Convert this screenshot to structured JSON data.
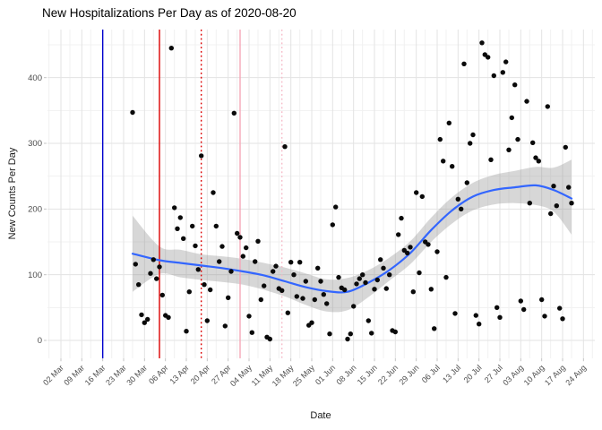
{
  "chart_data": {
    "type": "scatter",
    "title": "New Hospitalizations Per Day as of 2020-08-20",
    "xlabel": "Date",
    "ylabel": "New Counts Per Day",
    "x_tick_start_date": "2020-03-02",
    "x_tick_interval_days": 7,
    "x_tick_labels": [
      "02 Mar",
      "09 Mar",
      "16 Mar",
      "23 Mar",
      "30 Mar",
      "06 Apr",
      "13 Apr",
      "20 Apr",
      "27 Apr",
      "04 May",
      "11 May",
      "18 May",
      "25 May",
      "01 Jun",
      "08 Jun",
      "15 Jun",
      "22 Jun",
      "29 Jun",
      "06 Jul",
      "13 Jul",
      "20 Jul",
      "27 Jul",
      "03 Aug",
      "10 Aug",
      "17 Aug",
      "24 Aug"
    ],
    "y_ticks": [
      0,
      100,
      200,
      300,
      400
    ],
    "y_minor_ticks": [
      50,
      150,
      250,
      350,
      450
    ],
    "ylim": [
      -27,
      473
    ],
    "grid": true,
    "legend": "none",
    "points": [
      [
        "2020-03-26",
        347
      ],
      [
        "2020-03-27",
        116
      ],
      [
        "2020-03-28",
        85
      ],
      [
        "2020-03-29",
        39
      ],
      [
        "2020-03-30",
        27
      ],
      [
        "2020-03-31",
        32
      ],
      [
        "2020-04-01",
        102
      ],
      [
        "2020-04-02",
        123
      ],
      [
        "2020-04-03",
        94
      ],
      [
        "2020-04-04",
        112
      ],
      [
        "2020-04-05",
        69
      ],
      [
        "2020-04-06",
        38
      ],
      [
        "2020-04-07",
        35
      ],
      [
        "2020-04-08",
        445
      ],
      [
        "2020-04-09",
        202
      ],
      [
        "2020-04-10",
        170
      ],
      [
        "2020-04-11",
        187
      ],
      [
        "2020-04-12",
        155
      ],
      [
        "2020-04-13",
        14
      ],
      [
        "2020-04-14",
        74
      ],
      [
        "2020-04-15",
        174
      ],
      [
        "2020-04-16",
        144
      ],
      [
        "2020-04-17",
        108
      ],
      [
        "2020-04-18",
        281
      ],
      [
        "2020-04-19",
        85
      ],
      [
        "2020-04-20",
        30
      ],
      [
        "2020-04-21",
        77
      ],
      [
        "2020-04-22",
        225
      ],
      [
        "2020-04-23",
        174
      ],
      [
        "2020-04-24",
        120
      ],
      [
        "2020-04-25",
        143
      ],
      [
        "2020-04-26",
        22
      ],
      [
        "2020-04-27",
        65
      ],
      [
        "2020-04-28",
        105
      ],
      [
        "2020-04-29",
        346
      ],
      [
        "2020-04-30",
        163
      ],
      [
        "2020-05-01",
        157
      ],
      [
        "2020-05-02",
        128
      ],
      [
        "2020-05-03",
        141
      ],
      [
        "2020-05-04",
        37
      ],
      [
        "2020-05-05",
        12
      ],
      [
        "2020-05-06",
        120
      ],
      [
        "2020-05-07",
        151
      ],
      [
        "2020-05-08",
        62
      ],
      [
        "2020-05-09",
        83
      ],
      [
        "2020-05-10",
        5
      ],
      [
        "2020-05-11",
        2
      ],
      [
        "2020-05-12",
        105
      ],
      [
        "2020-05-13",
        113
      ],
      [
        "2020-05-14",
        79
      ],
      [
        "2020-05-15",
        76
      ],
      [
        "2020-05-16",
        295
      ],
      [
        "2020-05-17",
        42
      ],
      [
        "2020-05-18",
        119
      ],
      [
        "2020-05-19",
        100
      ],
      [
        "2020-05-20",
        67
      ],
      [
        "2020-05-21",
        119
      ],
      [
        "2020-05-22",
        64
      ],
      [
        "2020-05-23",
        90
      ],
      [
        "2020-05-24",
        23
      ],
      [
        "2020-05-25",
        27
      ],
      [
        "2020-05-26",
        62
      ],
      [
        "2020-05-27",
        110
      ],
      [
        "2020-05-28",
        90
      ],
      [
        "2020-05-29",
        70
      ],
      [
        "2020-05-30",
        56
      ],
      [
        "2020-05-31",
        10
      ],
      [
        "2020-06-01",
        176
      ],
      [
        "2020-06-02",
        203
      ],
      [
        "2020-06-03",
        96
      ],
      [
        "2020-06-04",
        80
      ],
      [
        "2020-06-05",
        77
      ],
      [
        "2020-06-06",
        2
      ],
      [
        "2020-06-07",
        10
      ],
      [
        "2020-06-08",
        52
      ],
      [
        "2020-06-09",
        86
      ],
      [
        "2020-06-10",
        94
      ],
      [
        "2020-06-11",
        100
      ],
      [
        "2020-06-12",
        88
      ],
      [
        "2020-06-13",
        30
      ],
      [
        "2020-06-14",
        11
      ],
      [
        "2020-06-15",
        78
      ],
      [
        "2020-06-16",
        92
      ],
      [
        "2020-06-17",
        123
      ],
      [
        "2020-06-18",
        110
      ],
      [
        "2020-06-19",
        79
      ],
      [
        "2020-06-20",
        100
      ],
      [
        "2020-06-21",
        15
      ],
      [
        "2020-06-22",
        13
      ],
      [
        "2020-06-23",
        161
      ],
      [
        "2020-06-24",
        186
      ],
      [
        "2020-06-25",
        137
      ],
      [
        "2020-06-26",
        133
      ],
      [
        "2020-06-27",
        142
      ],
      [
        "2020-06-28",
        74
      ],
      [
        "2020-06-29",
        225
      ],
      [
        "2020-06-30",
        103
      ],
      [
        "2020-07-01",
        219
      ],
      [
        "2020-07-02",
        150
      ],
      [
        "2020-07-03",
        146
      ],
      [
        "2020-07-04",
        78
      ],
      [
        "2020-07-05",
        18
      ],
      [
        "2020-07-06",
        135
      ],
      [
        "2020-07-07",
        306
      ],
      [
        "2020-07-08",
        273
      ],
      [
        "2020-07-09",
        96
      ],
      [
        "2020-07-10",
        331
      ],
      [
        "2020-07-11",
        265
      ],
      [
        "2020-07-12",
        41
      ],
      [
        "2020-07-13",
        215
      ],
      [
        "2020-07-14",
        200
      ],
      [
        "2020-07-15",
        421
      ],
      [
        "2020-07-16",
        240
      ],
      [
        "2020-07-17",
        300
      ],
      [
        "2020-07-18",
        313
      ],
      [
        "2020-07-19",
        38
      ],
      [
        "2020-07-20",
        25
      ],
      [
        "2020-07-21",
        453
      ],
      [
        "2020-07-22",
        435
      ],
      [
        "2020-07-23",
        431
      ],
      [
        "2020-07-24",
        275
      ],
      [
        "2020-07-25",
        403
      ],
      [
        "2020-07-26",
        50
      ],
      [
        "2020-07-27",
        35
      ],
      [
        "2020-07-28",
        408
      ],
      [
        "2020-07-29",
        424
      ],
      [
        "2020-07-30",
        290
      ],
      [
        "2020-07-31",
        339
      ],
      [
        "2020-08-01",
        389
      ],
      [
        "2020-08-02",
        306
      ],
      [
        "2020-08-03",
        60
      ],
      [
        "2020-08-04",
        47
      ],
      [
        "2020-08-05",
        364
      ],
      [
        "2020-08-06",
        209
      ],
      [
        "2020-08-07",
        301
      ],
      [
        "2020-08-08",
        278
      ],
      [
        "2020-08-09",
        273
      ],
      [
        "2020-08-10",
        62
      ],
      [
        "2020-08-11",
        37
      ],
      [
        "2020-08-12",
        356
      ],
      [
        "2020-08-13",
        193
      ],
      [
        "2020-08-14",
        235
      ],
      [
        "2020-08-15",
        205
      ],
      [
        "2020-08-16",
        49
      ],
      [
        "2020-08-17",
        33
      ],
      [
        "2020-08-18",
        294
      ],
      [
        "2020-08-19",
        233
      ],
      [
        "2020-08-20",
        209
      ]
    ],
    "smooth_line": [
      [
        "2020-03-26",
        132,
        74,
        190
      ],
      [
        "2020-04-04",
        122,
        101,
        143
      ],
      [
        "2020-04-11",
        118,
        96,
        138
      ],
      [
        "2020-04-18",
        114,
        92,
        131
      ],
      [
        "2020-04-25",
        110,
        89,
        128
      ],
      [
        "2020-05-02",
        105,
        85,
        124
      ],
      [
        "2020-05-09",
        99,
        77,
        118
      ],
      [
        "2020-05-16",
        90,
        67,
        111
      ],
      [
        "2020-05-23",
        81,
        54,
        102
      ],
      [
        "2020-05-30",
        75,
        44,
        93
      ],
      [
        "2020-06-06",
        74,
        46,
        95
      ],
      [
        "2020-06-13",
        88,
        66,
        107
      ],
      [
        "2020-06-20",
        107,
        91,
        126
      ],
      [
        "2020-06-27",
        133,
        116,
        151
      ],
      [
        "2020-07-04",
        168,
        150,
        187
      ],
      [
        "2020-07-11",
        198,
        178,
        218
      ],
      [
        "2020-07-18",
        219,
        198,
        240
      ],
      [
        "2020-07-25",
        229,
        207,
        252
      ],
      [
        "2020-08-01",
        233,
        209,
        258
      ],
      [
        "2020-08-08",
        236,
        206,
        264
      ],
      [
        "2020-08-14",
        229,
        196,
        263
      ],
      [
        "2020-08-20",
        216,
        161,
        275
      ]
    ],
    "event_lines": [
      {
        "date": "2020-03-16",
        "color": "#0000cd",
        "style": "solid",
        "name": "event-line-blue"
      },
      {
        "date": "2020-04-04",
        "color": "#dc0000",
        "style": "solid",
        "name": "event-line-red"
      },
      {
        "date": "2020-04-18",
        "color": "#dc0000",
        "style": "dotted",
        "name": "event-line-red-dotted"
      },
      {
        "date": "2020-05-01",
        "color": "#f5a8b8",
        "style": "solid",
        "name": "event-line-pink"
      },
      {
        "date": "2020-05-15",
        "color": "#f6bcc9",
        "style": "dotted",
        "name": "event-line-pink-dotted"
      }
    ],
    "colors": {
      "point": "#0a0a0a",
      "smooth_line": "#3366ff",
      "ribbon": "rgba(140,140,140,0.35)",
      "grid_major": "#e3e3e3",
      "grid_minor": "#f1f1f1",
      "axis_text": "#4d4d4d",
      "tick_mark": "#c4c4c4",
      "title_color": "#000000"
    }
  }
}
